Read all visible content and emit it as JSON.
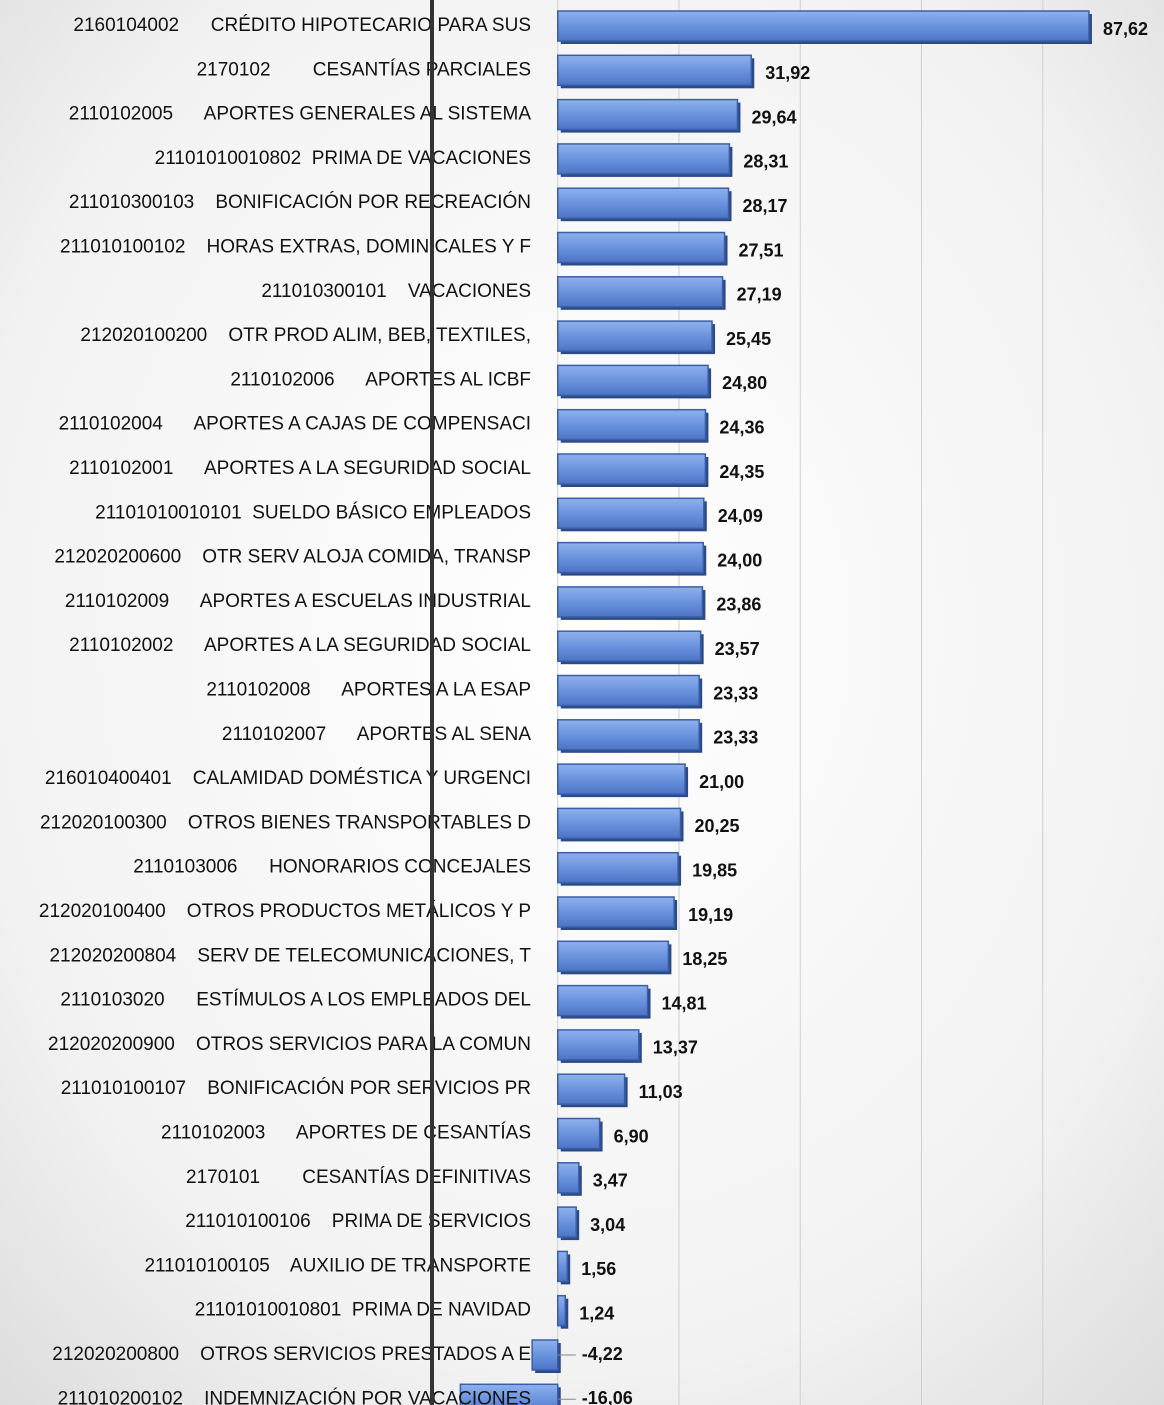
{
  "chart_data": {
    "type": "bar",
    "orientation": "horizontal",
    "categories": [
      "2160104002      CRÉDITO HIPOTECARIO PARA SUS",
      "2170102        CESANTÍAS PARCIALES",
      "2110102005      APORTES GENERALES AL SISTEMA",
      "21101010010802  PRIMA DE VACACIONES",
      "211010300103    BONIFICACIÓN POR RECREACIÓN",
      "211010100102    HORAS EXTRAS, DOMINICALES Y F",
      "211010300101    VACACIONES",
      "212020100200    OTR PROD ALIM, BEB, TEXTILES,",
      "2110102006      APORTES AL ICBF",
      "2110102004      APORTES A CAJAS DE COMPENSACI",
      "2110102001      APORTES A LA SEGURIDAD SOCIAL",
      "21101010010101  SUELDO BÁSICO EMPLEADOS",
      "212020200600    OTR SERV ALOJA COMIDA, TRANSP",
      "2110102009      APORTES A ESCUELAS INDUSTRIAL",
      "2110102002      APORTES A LA SEGURIDAD SOCIAL",
      "2110102008      APORTES A LA ESAP",
      "2110102007      APORTES AL SENA",
      "216010400401    CALAMIDAD DOMÉSTICA Y URGENCI",
      "212020100300    OTROS BIENES TRANSPORTABLES D",
      "2110103006      HONORARIOS CONCEJALES",
      "212020100400    OTROS PRODUCTOS METÁLICOS Y P",
      "212020200804    SERV DE TELECOMUNICACIONES, T",
      "2110103020      ESTÍMULOS A LOS EMPLEADOS DEL",
      "212020200900    OTROS SERVICIOS PARA LA COMUN",
      "211010100107    BONIFICACIÓN POR SERVICIOS PR",
      "2110102003      APORTES DE CESANTÍAS",
      "2170101        CESANTÍAS DEFINITIVAS",
      "211010100106    PRIMA DE SERVICIOS",
      "211010100105    AUXILIO DE TRANSPORTE",
      "21101010010801  PRIMA DE NAVIDAD",
      "212020200800    OTROS SERVICIOS PRESTADOS A E",
      "211010200102    INDEMNIZACIÓN POR VACACIONES"
    ],
    "values": [
      87.62,
      31.92,
      29.64,
      28.31,
      28.17,
      27.51,
      27.19,
      25.45,
      24.8,
      24.36,
      24.35,
      24.09,
      24.0,
      23.86,
      23.57,
      23.33,
      23.33,
      21.0,
      20.25,
      19.85,
      19.19,
      18.25,
      14.81,
      13.37,
      11.03,
      6.9,
      3.47,
      3.04,
      1.56,
      1.24,
      -4.22,
      -16.06
    ],
    "value_labels": [
      "87,62",
      "31,92",
      "29,64",
      "28,31",
      "28,17",
      "27,51",
      "27,19",
      "25,45",
      "24,80",
      "24,36",
      "24,35",
      "24,09",
      "24,00",
      "23,86",
      "23,57",
      "23,33",
      "23,33",
      "21,00",
      "20,25",
      "19,85",
      "19,19",
      "18,25",
      "14,81",
      "13,37",
      "11,03",
      "6,90",
      "3,47",
      "3,04",
      "1,56",
      "1,24",
      "-4,22",
      "-16,06"
    ],
    "color": "#5f8ad8",
    "xlim": [
      -92,
      100
    ],
    "xticks": [
      0,
      20,
      40,
      60,
      80
    ],
    "grid": true
  }
}
